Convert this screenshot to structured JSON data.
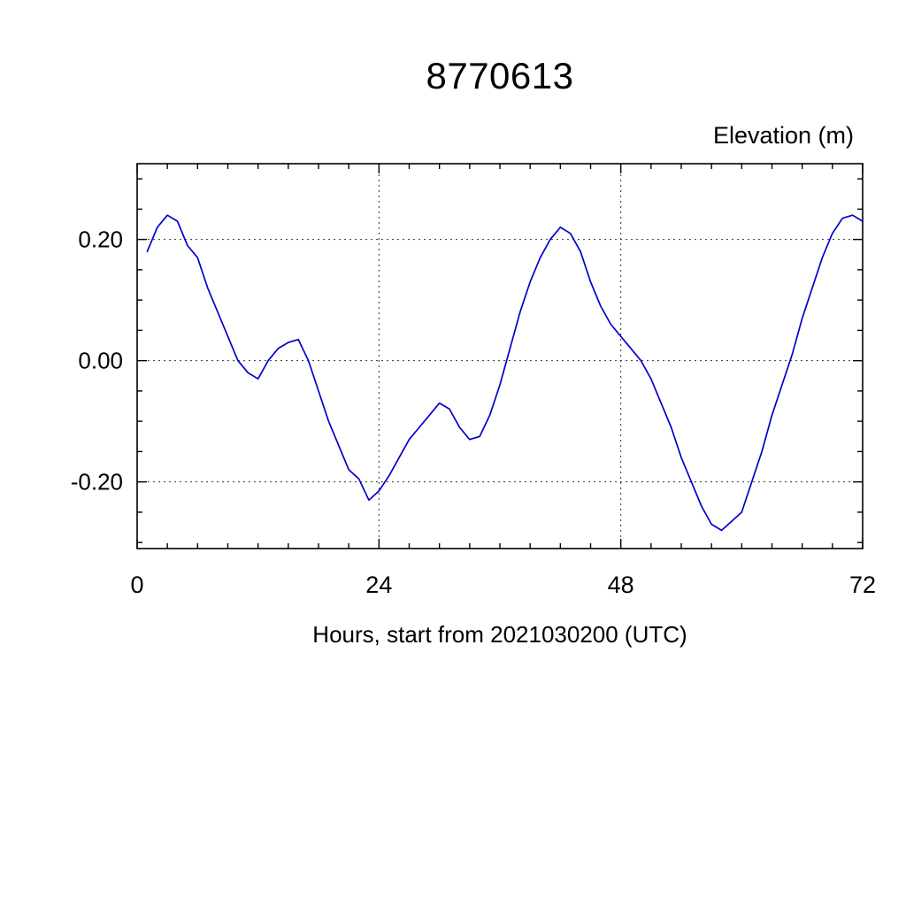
{
  "chart_data": {
    "type": "line",
    "title": "8770613",
    "ylabel": "Elevation (m)",
    "xlabel": "Hours, start from 2021030200 (UTC)",
    "xlim": [
      0,
      72
    ],
    "ylim": [
      -0.31,
      0.325
    ],
    "x_major_ticks": [
      0,
      24,
      48,
      72
    ],
    "x_tick_labels": [
      "0",
      "24",
      "48",
      "72"
    ],
    "x_minor_step": 3,
    "y_major_ticks": [
      0.2,
      0.0,
      -0.2
    ],
    "y_tick_labels": [
      "0.20",
      "0.00",
      "-0.20"
    ],
    "y_minor_step": 0.05,
    "y_minor_range": [
      -0.3,
      0.3
    ],
    "grid_x": [
      24,
      48
    ],
    "grid_y": [
      0.2,
      0.0,
      -0.2
    ],
    "grid_on": true,
    "legend_position": "none",
    "line_color": "#0000cd",
    "frame_color": "#000000",
    "grid_color": "#333333",
    "series": [
      {
        "name": "elevation",
        "x": [
          1,
          2,
          3,
          4,
          5,
          6,
          7,
          8,
          9,
          10,
          11,
          12,
          13,
          14,
          15,
          16,
          17,
          18,
          19,
          20,
          21,
          22,
          23,
          24,
          25,
          26,
          27,
          28,
          29,
          30,
          31,
          32,
          33,
          34,
          35,
          36,
          37,
          38,
          39,
          40,
          41,
          42,
          43,
          44,
          45,
          46,
          47,
          48,
          49,
          50,
          51,
          52,
          53,
          54,
          55,
          56,
          57,
          58,
          59,
          60,
          61,
          62,
          63,
          64,
          65,
          66,
          67,
          68,
          69,
          70,
          71,
          72
        ],
        "y": [
          0.18,
          0.22,
          0.24,
          0.23,
          0.19,
          0.17,
          0.12,
          0.08,
          0.04,
          0.0,
          -0.02,
          -0.03,
          0.0,
          0.02,
          0.03,
          0.035,
          0.0,
          -0.05,
          -0.1,
          -0.14,
          -0.18,
          -0.195,
          -0.23,
          -0.215,
          -0.19,
          -0.16,
          -0.13,
          -0.11,
          -0.09,
          -0.07,
          -0.08,
          -0.11,
          -0.13,
          -0.125,
          -0.09,
          -0.04,
          0.02,
          0.08,
          0.13,
          0.17,
          0.2,
          0.22,
          0.21,
          0.18,
          0.13,
          0.09,
          0.06,
          0.04,
          0.02,
          0.0,
          -0.03,
          -0.07,
          -0.11,
          -0.16,
          -0.2,
          -0.24,
          -0.27,
          -0.28,
          -0.265,
          -0.25,
          -0.2,
          -0.15,
          -0.09,
          -0.04,
          0.01,
          0.07,
          0.12,
          0.17,
          0.21,
          0.235,
          0.24,
          0.23
        ]
      }
    ]
  }
}
